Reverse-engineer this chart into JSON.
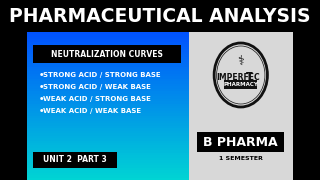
{
  "title": "PHARMACEUTICAL ANALYSIS",
  "title_fontsize": 13.5,
  "title_color": "#ffffff",
  "title_bg": "#000000",
  "left_bg_top": "#00d4d4",
  "left_bg_bottom": "#0040ff",
  "right_bg": "#e8e8e8",
  "neutralization_label": "NEUTRALIZATION CURVES",
  "neutralization_bg": "#000000",
  "neutralization_color": "#ffffff",
  "bullet_items": [
    "STRONG ACID / STRONG BASE",
    "STRONG ACID / WEAK BASE",
    "WEAK ACID / STRONG BASE",
    "WEAK ACID / WEAK BASE"
  ],
  "bullet_color": "#ffffff",
  "unit_label": "UNIT 2  PART 3",
  "unit_bg": "#000000",
  "unit_color": "#ffffff",
  "logo_text1": "IMPERFECT",
  "logo_text2": "PHARMACY",
  "bpharma_text": "B PHARMA",
  "bpharma_bg": "#000000",
  "bpharma_color": "#ffffff",
  "semester_text": "1 SEMESTER",
  "semester_color": "#000000"
}
